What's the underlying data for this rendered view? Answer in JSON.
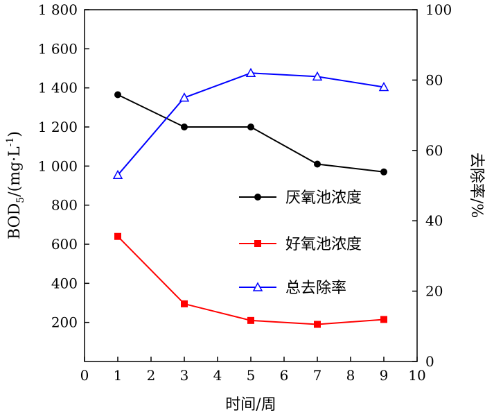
{
  "chart_data": {
    "type": "line",
    "xlabel": "时间/周",
    "ylabel_left_main": "BOD",
    "ylabel_left_sub": "5",
    "ylabel_left_tail": "/(mg·L",
    "ylabel_left_sup": "-1",
    "ylabel_left_end": ")",
    "ylabel_right": "去除率/%",
    "xlim": [
      0,
      10
    ],
    "ylim_left": [
      0,
      1800
    ],
    "ylim_right": [
      0,
      100
    ],
    "x_ticks": [
      0,
      1,
      2,
      3,
      4,
      5,
      6,
      7,
      8,
      9,
      10
    ],
    "x_tick_labels": [
      "0",
      "1",
      "2",
      "3",
      "4",
      "5",
      "6",
      "7",
      "8",
      "9",
      "10"
    ],
    "y_left_ticks": [
      200,
      400,
      600,
      800,
      1000,
      1200,
      1400,
      1600,
      1800
    ],
    "y_left_tick_labels": [
      "200",
      "400",
      "600",
      "800",
      "1 000",
      "1 200",
      "1 400",
      "1 600",
      "1 800"
    ],
    "y_right_ticks": [
      0,
      20,
      40,
      60,
      80,
      100
    ],
    "y_right_tick_labels": [
      "0",
      "20",
      "40",
      "60",
      "80",
      "100"
    ],
    "legend_position": "right-center",
    "grid": false,
    "series": [
      {
        "name": "厌氧池浓度",
        "axis": "left",
        "color": "#000000",
        "marker": "circle",
        "x": [
          1,
          3,
          5,
          7,
          9
        ],
        "y": [
          1365,
          1200,
          1200,
          1010,
          970
        ]
      },
      {
        "name": "好氧池浓度",
        "axis": "left",
        "color": "#ff0000",
        "marker": "square",
        "x": [
          1,
          3,
          5,
          7,
          9
        ],
        "y": [
          640,
          295,
          210,
          190,
          215
        ]
      },
      {
        "name": "总去除率",
        "axis": "right",
        "color": "#0000ff",
        "marker": "triangle-open",
        "x": [
          1,
          3,
          5,
          7,
          9
        ],
        "y": [
          53,
          75,
          82,
          81,
          78
        ]
      }
    ]
  }
}
